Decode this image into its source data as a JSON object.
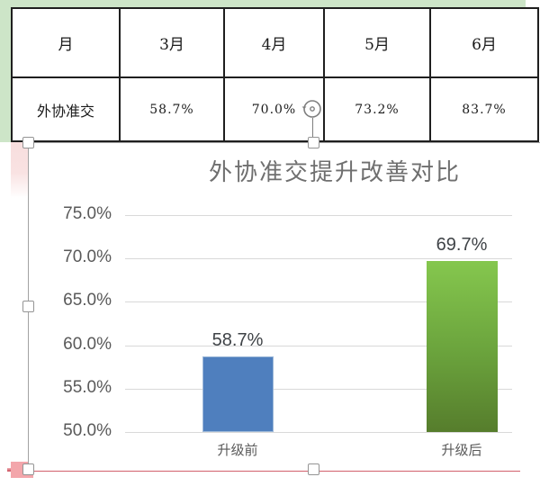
{
  "table": {
    "headers": [
      "月",
      "3月",
      "4月",
      "5月",
      "6月"
    ],
    "row": {
      "label": "外协准交",
      "values": [
        "58.7%",
        "70.0%",
        "73.2%",
        "83.7%"
      ]
    }
  },
  "chart_data": {
    "type": "bar",
    "title": "外协准交提升改善对比",
    "categories": [
      "升级前",
      "升级后"
    ],
    "values": [
      58.7,
      69.7
    ],
    "data_labels": [
      "58.7%",
      "69.7%"
    ],
    "ylim": [
      50,
      75
    ],
    "yticks": [
      75,
      70,
      65,
      60,
      55,
      50
    ],
    "ytick_labels": [
      "75.0%",
      "70.0%",
      "65.0%",
      "60.0%",
      "55.0%",
      "50.0%"
    ],
    "grid": true,
    "legend": "none",
    "bar_colors": [
      "#4f7fbe",
      "green-gradient"
    ]
  },
  "colors": {
    "bar_blue": "#4f7fbe",
    "bar_green_top": "#85c74e",
    "bar_green_bottom": "#567d2c",
    "table_frame_green": "#cde5c8",
    "gridline": "#d9d9d9",
    "underline_red": "#d2606c",
    "corner_pink": "#f3a6ab",
    "title_gray": "#6f6f6f"
  }
}
